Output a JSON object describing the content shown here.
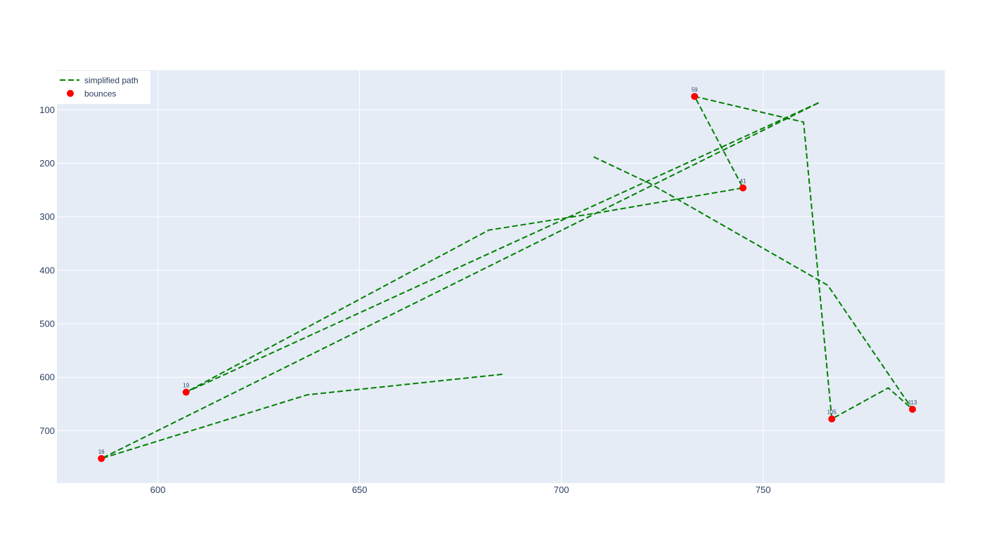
{
  "chart_data": {
    "type": "scatter",
    "title": "",
    "xlabel": "",
    "ylabel": "",
    "xlim": [
      575,
      795
    ],
    "ylim": [
      798,
      26
    ],
    "y_reversed": true,
    "grid": true,
    "legend_position": "top-left",
    "x_ticks": [
      600,
      650,
      700,
      750
    ],
    "y_ticks": [
      100,
      200,
      300,
      400,
      500,
      600,
      700
    ],
    "colors": {
      "plot_bg": "#E5ECF6",
      "grid": "#ffffff",
      "path": "#008000",
      "bounces": "#ff0000",
      "text": "#2a3f5f"
    },
    "series": [
      {
        "name": "simplified path",
        "mode": "lines",
        "dash": "dash",
        "x": [
          708,
          722,
          766,
          787,
          781,
          767,
          760,
          733,
          745,
          708,
          682,
          607,
          764,
          586,
          637,
          686
        ],
        "y": [
          188,
          238,
          428,
          660,
          620,
          678,
          123,
          75,
          246,
          294,
          325,
          628,
          86,
          752,
          633,
          594
        ]
      },
      {
        "name": "bounces",
        "mode": "markers",
        "x": [
          586,
          607,
          733,
          745,
          767,
          787
        ],
        "y": [
          752,
          628,
          75,
          246,
          678,
          660
        ],
        "labels": [
          "16",
          "19",
          "59",
          "41",
          "105",
          "113"
        ]
      }
    ]
  }
}
